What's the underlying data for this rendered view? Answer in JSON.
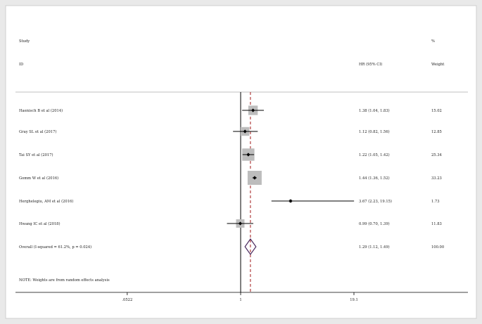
{
  "chart_data": {
    "type": "forest",
    "header": {
      "study_label": "Study",
      "id_label": "ID",
      "hr_label": "HR (95% CI)",
      "pct_label": "%",
      "weight_label": "Weight"
    },
    "x_axis": {
      "scale": "log",
      "range": [
        0.0522,
        19.1
      ],
      "ticks": [
        {
          "value": 0.0522,
          "label": ".0522"
        },
        {
          "value": 1,
          "label": "1"
        },
        {
          "value": 19.1,
          "label": "19.1"
        }
      ],
      "null_line": 1
    },
    "studies": [
      {
        "id": "Haenisch B et al (2014)",
        "hr": 1.38,
        "lo": 1.04,
        "hi": 1.83,
        "hr_text": "1.38 (1.04, 1.83)",
        "weight": 15.02,
        "weight_text": "15.02"
      },
      {
        "id": "Gray SL et al (2017)",
        "hr": 1.12,
        "lo": 0.82,
        "hi": 1.56,
        "hr_text": "1.12 (0.82, 1.56)",
        "weight": 12.85,
        "weight_text": "12.85"
      },
      {
        "id": "Tai SY et al (2017)",
        "hr": 1.22,
        "lo": 1.05,
        "hi": 1.42,
        "hr_text": "1.22 (1.05, 1.42)",
        "weight": 25.34,
        "weight_text": "25.34"
      },
      {
        "id": "Gomm W et al (2016)",
        "hr": 1.44,
        "lo": 1.36,
        "hi": 1.52,
        "hr_text": "1.44 (1.36, 1.52)",
        "weight": 33.23,
        "weight_text": "33.23"
      },
      {
        "id": "Herghelegiu, AM et al (2016)",
        "hr": 3.67,
        "lo": 2.23,
        "hi": 19.15,
        "hr_text": "3.67 (2.23, 19.15)",
        "weight": 1.73,
        "weight_text": "1.73"
      },
      {
        "id": "Hwang IC et al (2018)",
        "hr": 0.99,
        "lo": 0.7,
        "hi": 1.39,
        "hr_text": "0.99 (0.70, 1.39)",
        "weight": 11.83,
        "weight_text": "11.83"
      }
    ],
    "overall": {
      "id": "Overall  (I-squared = 61.2%, p = 0.024)",
      "hr": 1.29,
      "lo": 1.12,
      "hi": 1.49,
      "hr_text": "1.29 (1.12, 1.49)",
      "weight_text": "100.00"
    },
    "note": "NOTE: Weights are from random effects analysis",
    "colors": {
      "box": "#bdbdbd",
      "diamond": "#4b2a5e",
      "overall_line": "#a01818",
      "line": "#000000",
      "frame": "#cfcfcf",
      "outer_bg": "#e9e9e9",
      "plot_bg": "#ffffff"
    }
  }
}
